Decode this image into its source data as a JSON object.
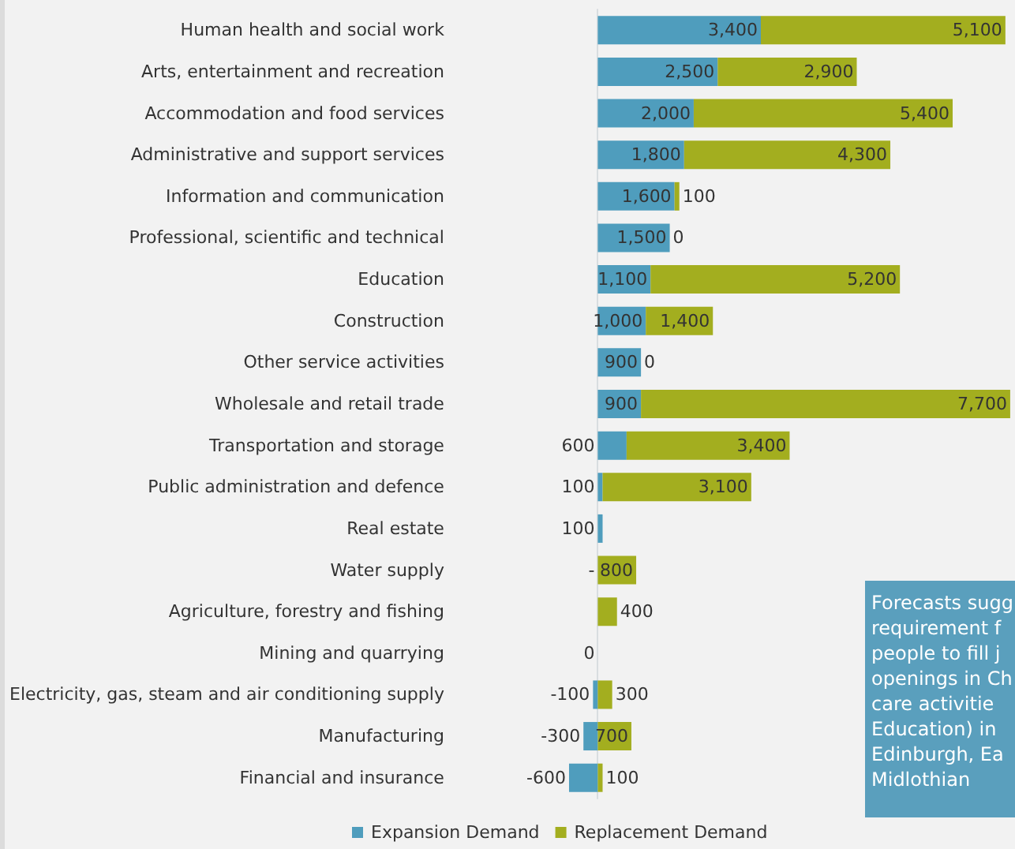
{
  "chart_data": {
    "type": "bar",
    "orientation": "horizontal",
    "stacked": true,
    "legend": "bottom",
    "tick_labels": "y",
    "categories": [
      "Human health and social work",
      "Arts, entertainment and recreation",
      "Accommodation and food services",
      "Administrative and support services",
      "Information and communication",
      "Professional, scientific and technical",
      "Education",
      "Construction",
      "Other service activities",
      "Wholesale and retail trade",
      "Transportation and storage",
      "Public administration and defence",
      "Real estate",
      "Water supply",
      "Agriculture, forestry and fishing",
      "Mining and quarrying",
      "Electricity, gas, steam and air conditioning supply",
      "Manufacturing",
      "Financial and insurance"
    ],
    "xlim": [
      -700,
      8700
    ],
    "series": [
      {
        "name": "Expansion Demand",
        "color": "#4f9dbd",
        "values": [
          3400,
          2500,
          2000,
          1800,
          1600,
          1500,
          1100,
          1000,
          900,
          900,
          600,
          100,
          100,
          0,
          null,
          0,
          -100,
          -300,
          -600
        ],
        "value_labels": [
          "3,400",
          "2,500",
          "2,000",
          "1,800",
          "1,600",
          "1,500",
          "1,100",
          "1,000",
          "900",
          "900",
          "600",
          "100",
          "100",
          "-",
          null,
          "0",
          "-100",
          "-300",
          "-600"
        ]
      },
      {
        "name": "Replacement Demand",
        "color": "#a3ae1f",
        "values": [
          5100,
          2900,
          5400,
          4300,
          100,
          0,
          5200,
          1400,
          0,
          7700,
          3400,
          3100,
          null,
          800,
          400,
          null,
          300,
          700,
          100
        ],
        "value_labels": [
          "5,100",
          "2,900",
          "5,400",
          "4,300",
          "100",
          "0",
          "5,200",
          "1,400",
          "0",
          "7,700",
          "3,400",
          "3,100",
          null,
          "800",
          "400",
          null,
          "300",
          "700",
          "100"
        ]
      }
    ],
    "annotations": [
      "Forecasts sugg\nrequirement f\npeople to fill j\nopenings in Ch\ncare activitie\nEducation) in\nEdinburgh, Ea\nMidlothian"
    ]
  }
}
